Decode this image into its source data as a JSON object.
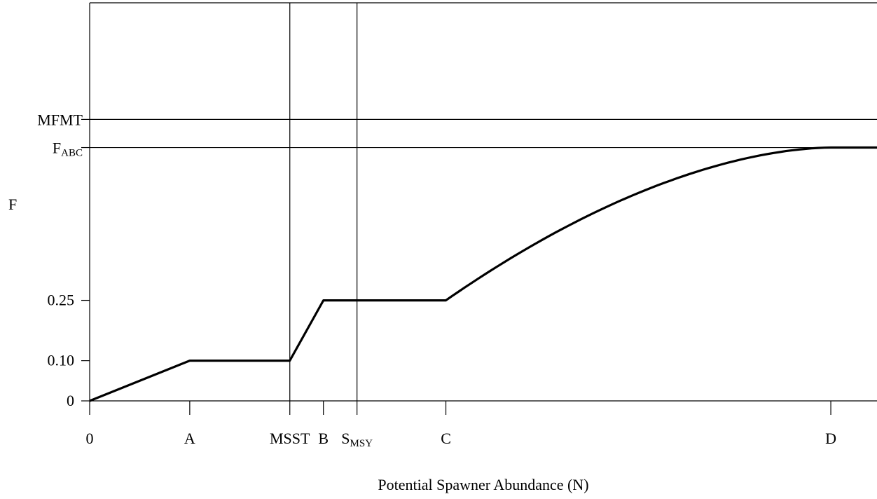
{
  "chart_data": {
    "type": "line",
    "title": "",
    "xlabel": "Potential Spawner Abundance (N)",
    "ylabel": "F",
    "x_ticks": [
      {
        "key": "zero",
        "label": "0",
        "value": 0
      },
      {
        "key": "a",
        "label": "A",
        "value": 143
      },
      {
        "key": "msst",
        "label": "MSST",
        "value": 286
      },
      {
        "key": "b",
        "label": "B",
        "value": 334
      },
      {
        "key": "smsy",
        "label": "S",
        "label_sub": "MSY",
        "value": 382
      },
      {
        "key": "c",
        "label": "C",
        "value": 509
      },
      {
        "key": "d",
        "label": "D",
        "value": 1059
      }
    ],
    "y_ticks": [
      {
        "key": "zero",
        "label": "0",
        "value": 0
      },
      {
        "key": "p10",
        "label": "0.10",
        "value": 0.1
      },
      {
        "key": "p25",
        "label": "0.25",
        "value": 0.25
      }
    ],
    "reference_lines": {
      "horizontal": [
        {
          "key": "mfmt",
          "label": "MFMT",
          "value": 0.7
        },
        {
          "key": "fabc",
          "label": "F",
          "label_sub": "ABC",
          "value": 0.63
        }
      ],
      "vertical": [
        {
          "key": "msst",
          "value": 286
        },
        {
          "key": "smsy",
          "value": 382
        }
      ]
    },
    "xlim": [
      0,
      1125
    ],
    "ylim": [
      0,
      0.99
    ],
    "series": [
      {
        "segments": [
          {
            "type": "linear",
            "points": [
              [
                0,
                0
              ],
              [
                143,
                0.1
              ],
              [
                286,
                0.1
              ],
              [
                334,
                0.25
              ],
              [
                509,
                0.25
              ]
            ]
          },
          {
            "type": "curve",
            "from": [
              509,
              0.25
            ],
            "to": [
              1059,
              0.63
            ],
            "peak_at_end": true
          },
          {
            "type": "linear",
            "points": [
              [
                1059,
                0.63
              ],
              [
                1125,
                0.63
              ]
            ]
          }
        ]
      }
    ],
    "grid": false,
    "legend": "none"
  }
}
